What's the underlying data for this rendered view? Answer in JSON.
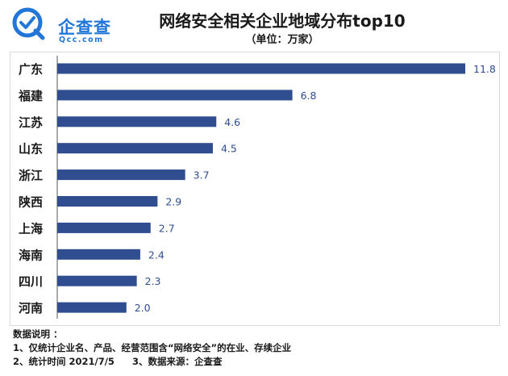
{
  "brand": {
    "name": "企查查",
    "domain_text": "Qcc.com",
    "accent": "#2176d8"
  },
  "header": {
    "title": "网络安全相关企业地域分布top10",
    "subtitle": "（单位：万家）"
  },
  "chart_data": {
    "type": "bar",
    "orientation": "horizontal",
    "title": "网络安全相关企业地域分布top10",
    "subtitle": "（单位：万家）",
    "categories": [
      "广东",
      "福建",
      "江苏",
      "山东",
      "浙江",
      "陕西",
      "上海",
      "海南",
      "四川",
      "河南"
    ],
    "values": [
      11.8,
      6.8,
      4.6,
      4.5,
      3.7,
      2.9,
      2.7,
      2.4,
      2.3,
      2.0
    ],
    "value_labels": [
      "11.8",
      "6.8",
      "4.6",
      "4.5",
      "3.7",
      "2.9",
      "2.7",
      "2.4",
      "2.3",
      "2.0"
    ],
    "xlim": [
      0,
      11.8
    ],
    "bar_color": "#2f4d8f",
    "label_color": "#2f4d8f",
    "grid": false,
    "legend": "none"
  },
  "notes": {
    "heading": "数据说明 ：",
    "line1": "1、仅统计企业名、产品、经营范围含“网络安全”的在业、存续企业",
    "line2_a": "2、统计时间 2021/7/5",
    "line2_b": "3、数据来源：企查查"
  }
}
